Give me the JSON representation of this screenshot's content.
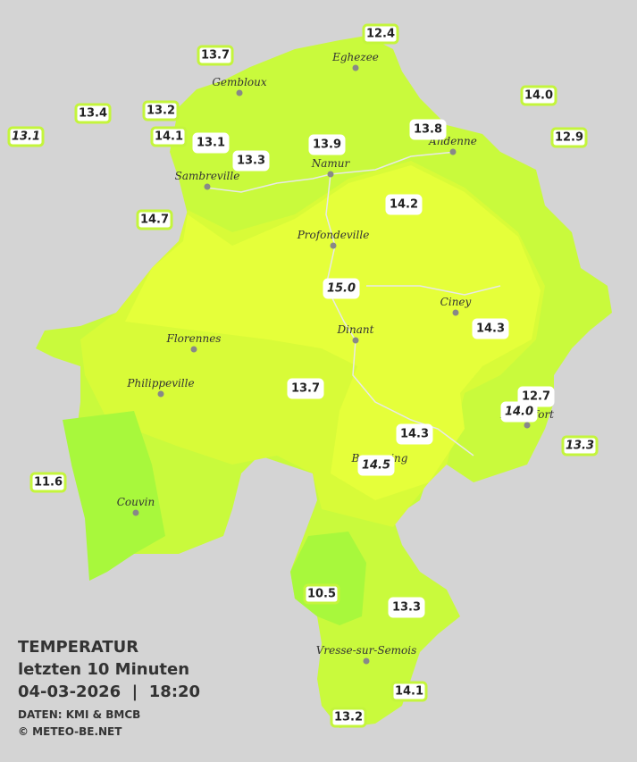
{
  "title": {
    "line1": "TEMPERATUR",
    "line2": "letzten 10 Minuten",
    "line3": "04-03-2026  |  18:20",
    "source": "DATEN: KMI & BMCB",
    "copyright": "© METEO-BE.NET"
  },
  "cities": [
    "Eghezee",
    "Gembloux",
    "Andenne",
    "Namur",
    "Sambreville",
    "Profondeville",
    "Ciney",
    "Dinant",
    "Florennes",
    "Philippeville",
    "Beauraing",
    "Rochefort",
    "Couvin",
    "Vresse-sur-Semois"
  ],
  "stations": [
    {
      "label": "12.4"
    },
    {
      "label": "13.7"
    },
    {
      "label": "14.0"
    },
    {
      "label": "13.4"
    },
    {
      "label": "13.2"
    },
    {
      "label": "13.1",
      "italic": true
    },
    {
      "label": "14.1"
    },
    {
      "label": "13.1"
    },
    {
      "label": "13.8"
    },
    {
      "label": "12.9"
    },
    {
      "label": "13.9"
    },
    {
      "label": "13.3"
    },
    {
      "label": "14.7"
    },
    {
      "label": "14.2"
    },
    {
      "label": "15.0",
      "italic": true
    },
    {
      "label": "14.3"
    },
    {
      "label": "13.7"
    },
    {
      "label": "12.7"
    },
    {
      "label": "14.0",
      "italic": true
    },
    {
      "label": "14.3"
    },
    {
      "label": "13.3",
      "italic": true
    },
    {
      "label": "14.5",
      "italic": true
    },
    {
      "label": "11.6"
    },
    {
      "label": "10.5"
    },
    {
      "label": "13.3"
    },
    {
      "label": "14.1"
    },
    {
      "label": "13.2"
    }
  ]
}
